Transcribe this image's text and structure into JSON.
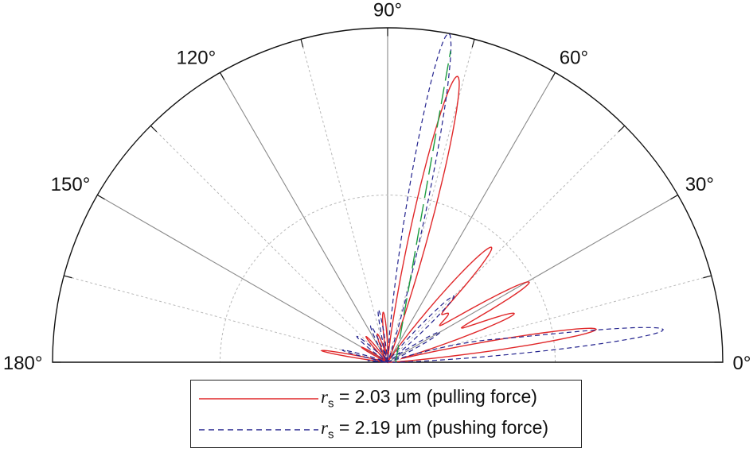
{
  "chart_data": {
    "type": "polar",
    "angle_ticks": [
      "0°",
      "30°",
      "60°",
      "90°",
      "120°",
      "150°",
      "180°"
    ],
    "angle_range_deg": [
      0,
      180
    ],
    "radial_range": [
      0,
      1
    ],
    "radial_gridlines": [
      0.5,
      1.0
    ],
    "angular_gridline_step_deg": 15,
    "series": [
      {
        "name": "= 2.03 µm (pulling force)",
        "symbol": "r",
        "subscript": "s",
        "color": "#e0282a",
        "style": "solid",
        "lobes": [
          {
            "angle_deg": 76.3,
            "peak": 0.88,
            "width_deg": 3.2
          },
          {
            "angle_deg": 48.0,
            "peak": 0.46,
            "width_deg": 3.4
          },
          {
            "angle_deg": 38.5,
            "peak": 0.22,
            "width_deg": 3.2
          },
          {
            "angle_deg": 29.5,
            "peak": 0.48,
            "width_deg": 2.8
          },
          {
            "angle_deg": 21.0,
            "peak": 0.4,
            "width_deg": 2.5
          },
          {
            "angle_deg": 9.0,
            "peak": 0.63,
            "width_deg": 2.3
          },
          {
            "angle_deg": 95.0,
            "peak": 0.15,
            "width_deg": 3.0
          },
          {
            "angle_deg": 110.0,
            "peak": 0.09,
            "width_deg": 4.0
          },
          {
            "angle_deg": 130.0,
            "peak": 0.1,
            "width_deg": 3.0
          },
          {
            "angle_deg": 150.0,
            "peak": 0.09,
            "width_deg": 2.5
          },
          {
            "angle_deg": 170.0,
            "peak": 0.2,
            "width_deg": 1.8
          }
        ]
      },
      {
        "name": "= 2.19 µm (pushing force)",
        "symbol": "r",
        "subscript": "s",
        "color": "#23238e",
        "style": "dashed",
        "lobes": [
          {
            "angle_deg": 79.5,
            "peak": 1.0,
            "width_deg": 3.0
          },
          {
            "angle_deg": 45.0,
            "peak": 0.28,
            "width_deg": 3.0
          },
          {
            "angle_deg": 30.0,
            "peak": 0.18,
            "width_deg": 3.0
          },
          {
            "angle_deg": 12.0,
            "peak": 0.29,
            "width_deg": 3.0
          },
          {
            "angle_deg": 6.5,
            "peak": 0.77,
            "width_deg": 2.3
          },
          {
            "angle_deg": 100.0,
            "peak": 0.16,
            "width_deg": 2.5
          },
          {
            "angle_deg": 115.0,
            "peak": 0.12,
            "width_deg": 3.0
          },
          {
            "angle_deg": 140.0,
            "peak": 0.12,
            "width_deg": 3.0
          },
          {
            "angle_deg": 165.0,
            "peak": 0.14,
            "width_deg": 2.0
          },
          {
            "angle_deg": 175.0,
            "peak": 0.06,
            "width_deg": 1.5
          }
        ]
      },
      {
        "name": "",
        "color": "#1a9c3f",
        "style": "long-dash",
        "line_angle_deg": 78.6,
        "line_length": 0.95
      }
    ],
    "legend": {
      "placement": "bottom-center",
      "entries": [
        {
          "symbol": "r",
          "subscript": "s",
          "text": "= 2.03 µm (pulling force)"
        },
        {
          "symbol": "r",
          "subscript": "s",
          "text": "= 2.19 µm (pushing force)"
        }
      ]
    },
    "grid": true
  }
}
